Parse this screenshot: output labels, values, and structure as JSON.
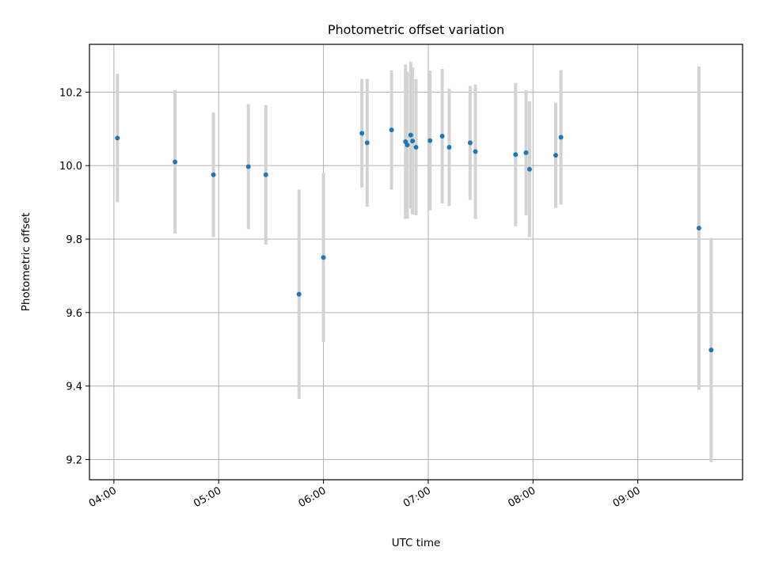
{
  "chart_data": {
    "type": "scatter",
    "title": "Photometric offset variation",
    "xlabel": "UTC time",
    "ylabel": "Photometric offset",
    "x_tick_labels": [
      "04:00",
      "05:00",
      "06:00",
      "07:00",
      "08:00",
      "09:00"
    ],
    "x_ticks": [
      "04:00",
      "05:00",
      "06:00",
      "07:00",
      "08:00",
      "09:00"
    ],
    "y_ticks": [
      9.2,
      9.4,
      9.6,
      9.8,
      10.0,
      10.2
    ],
    "xlim": [
      "03:46",
      "10:00"
    ],
    "ylim": [
      9.145,
      10.33
    ],
    "grid": true,
    "colors": {
      "marker": "#1f77b4",
      "errorbar": "#d3d3d3",
      "grid": "#b0b0b0"
    },
    "series": [
      {
        "points": [
          {
            "x": "04:02",
            "y": 10.075,
            "err": 0.175
          },
          {
            "x": "04:35",
            "y": 10.01,
            "err": 0.195
          },
          {
            "x": "04:57",
            "y": 9.975,
            "err": 0.17
          },
          {
            "x": "05:17",
            "y": 9.997,
            "err": 0.17
          },
          {
            "x": "05:27",
            "y": 9.975,
            "err": 0.19
          },
          {
            "x": "05:46",
            "y": 9.65,
            "err": 0.285
          },
          {
            "x": "06:00",
            "y": 9.75,
            "err": 0.23
          },
          {
            "x": "06:22",
            "y": 10.088,
            "err": 0.148
          },
          {
            "x": "06:25",
            "y": 10.062,
            "err": 0.174
          },
          {
            "x": "06:39",
            "y": 10.097,
            "err": 0.162
          },
          {
            "x": "06:47",
            "y": 10.065,
            "err": 0.21
          },
          {
            "x": "06:48",
            "y": 10.056,
            "err": 0.2
          },
          {
            "x": "06:50",
            "y": 10.083,
            "err": 0.2
          },
          {
            "x": "06:51",
            "y": 10.067,
            "err": 0.2
          },
          {
            "x": "06:53",
            "y": 10.05,
            "err": 0.185
          },
          {
            "x": "07:01",
            "y": 10.068,
            "err": 0.19
          },
          {
            "x": "07:08",
            "y": 10.08,
            "err": 0.183
          },
          {
            "x": "07:12",
            "y": 10.05,
            "err": 0.16
          },
          {
            "x": "07:24",
            "y": 10.062,
            "err": 0.155
          },
          {
            "x": "07:27",
            "y": 10.038,
            "err": 0.183
          },
          {
            "x": "07:50",
            "y": 10.03,
            "err": 0.195
          },
          {
            "x": "07:56",
            "y": 10.035,
            "err": 0.17
          },
          {
            "x": "07:58",
            "y": 9.99,
            "err": 0.185
          },
          {
            "x": "08:13",
            "y": 10.028,
            "err": 0.143
          },
          {
            "x": "08:16",
            "y": 10.077,
            "err": 0.183
          },
          {
            "x": "09:35",
            "y": 9.83,
            "err": 0.44
          },
          {
            "x": "09:42",
            "y": 9.498,
            "err": 0.305
          }
        ]
      }
    ]
  }
}
